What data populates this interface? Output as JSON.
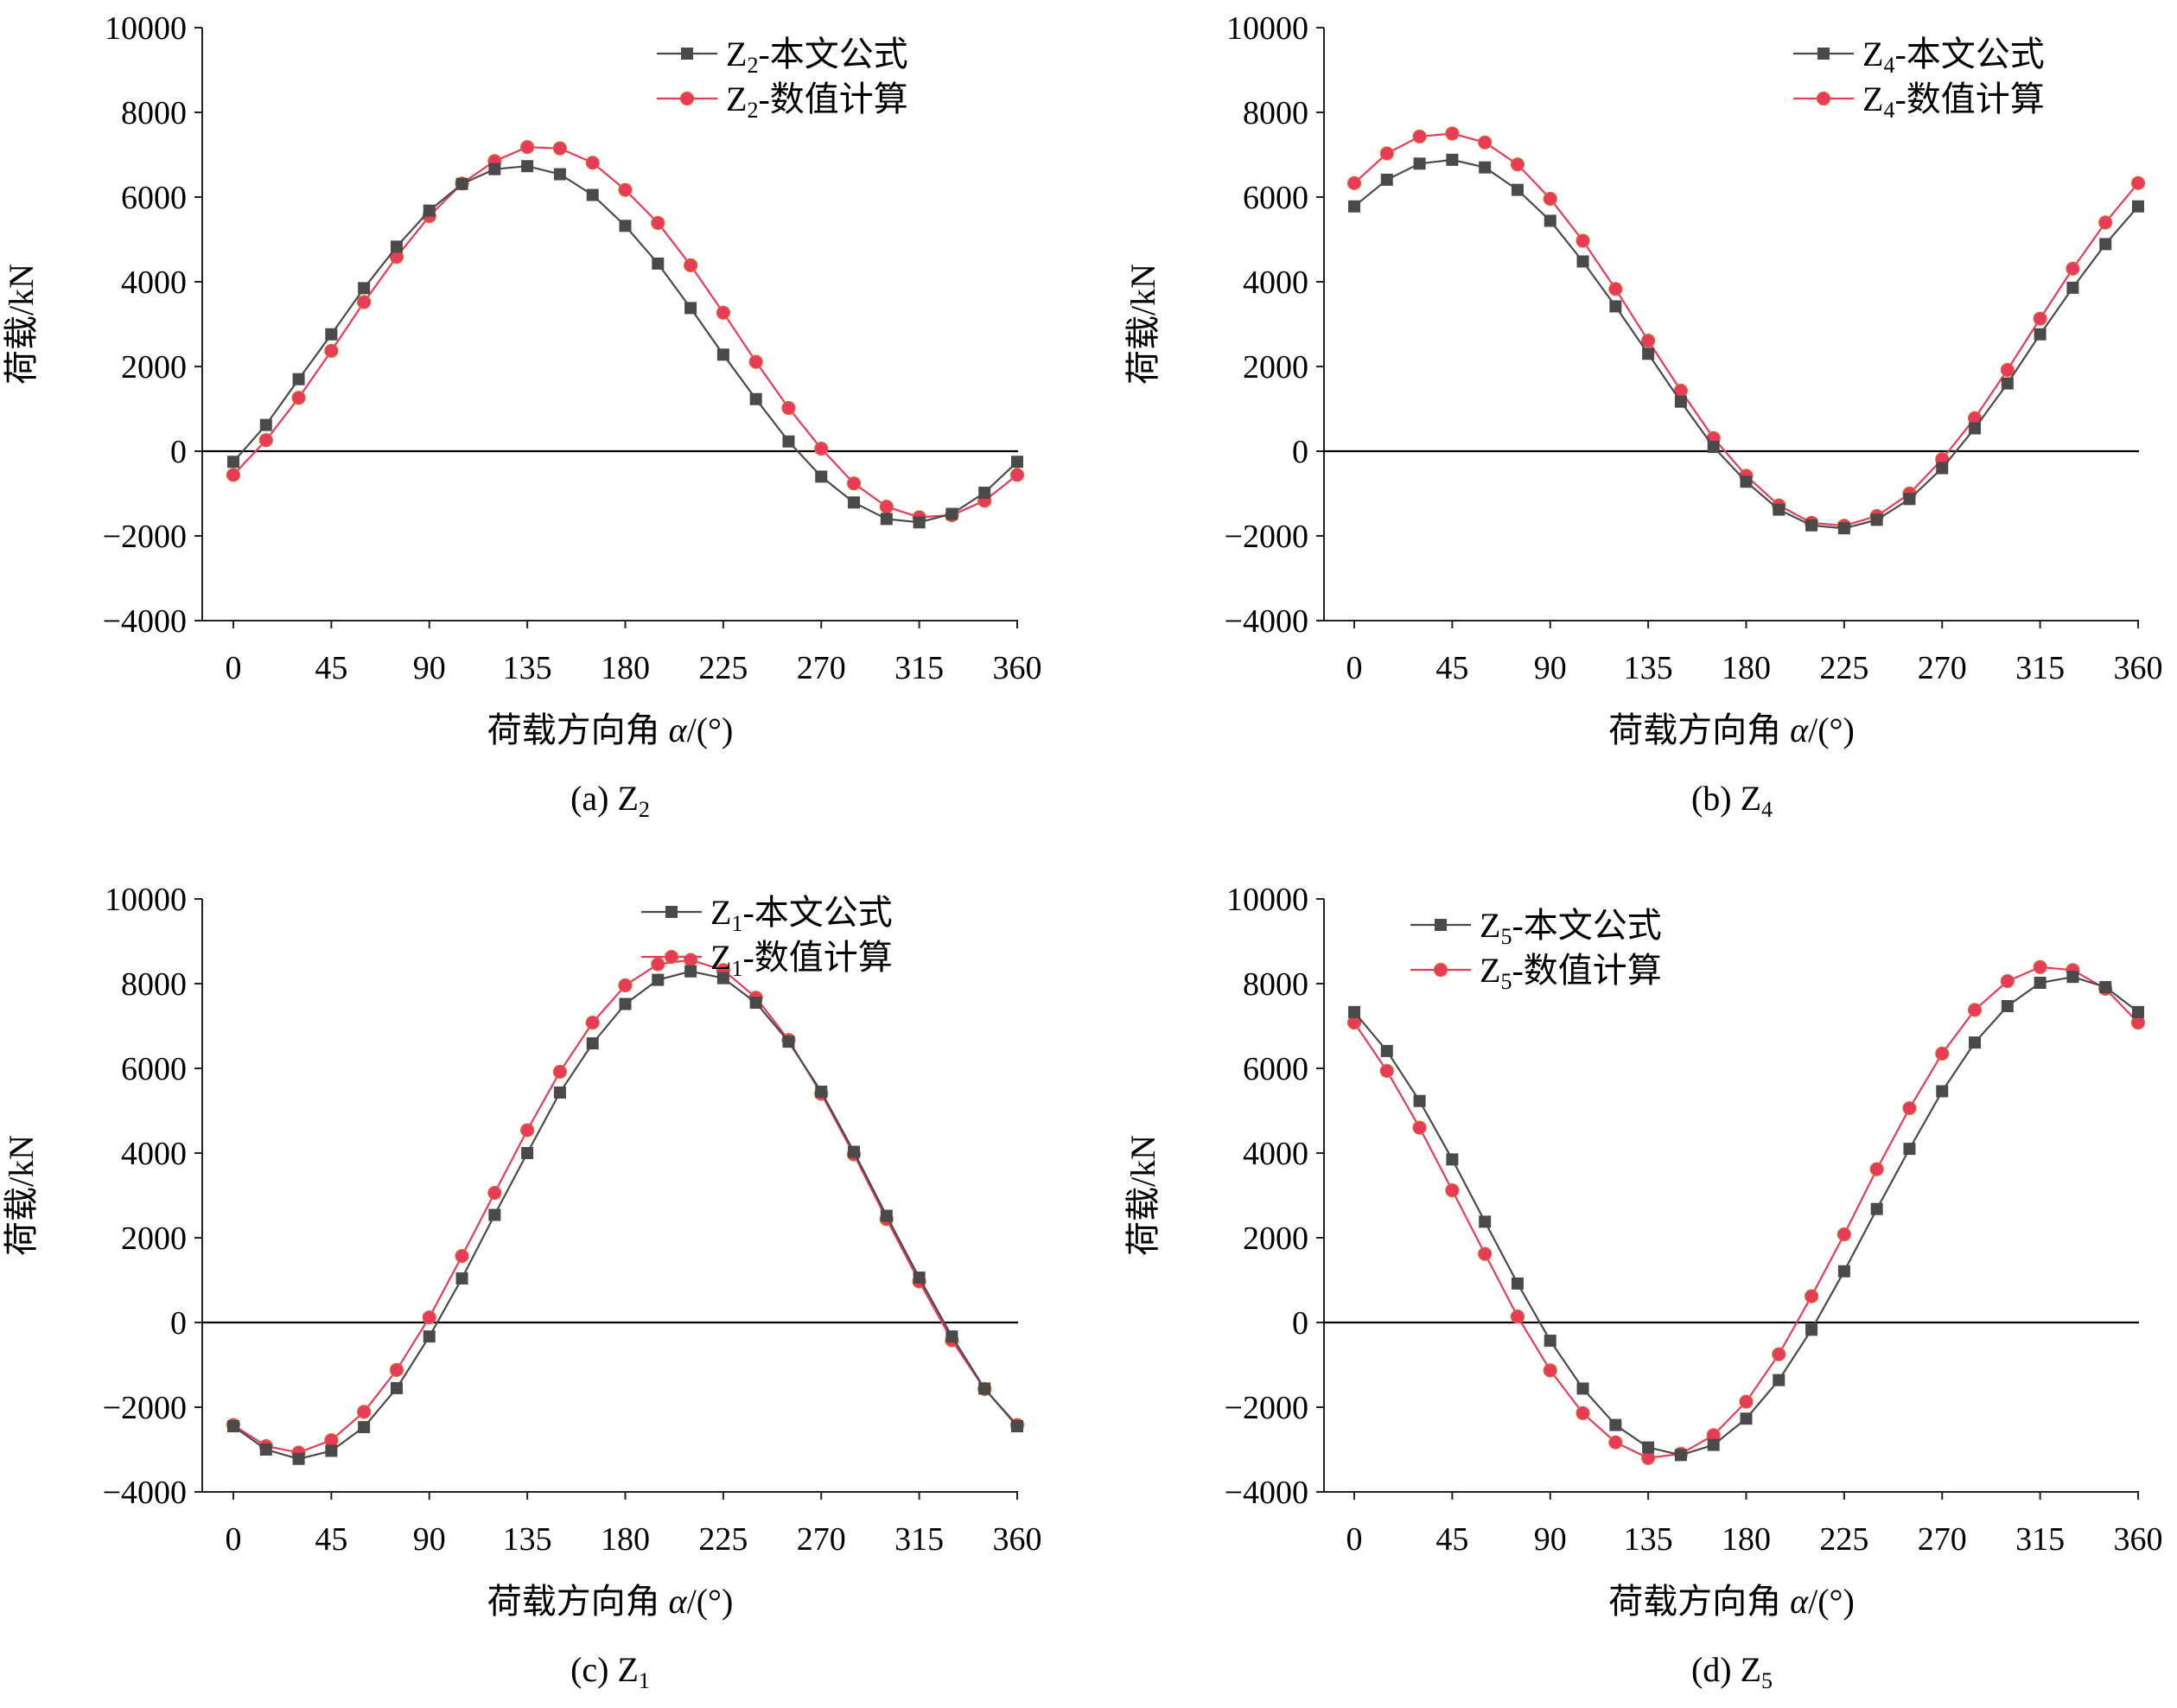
{
  "colors": {
    "formula": "#4a4a4a",
    "numeric": "#e83a5a",
    "zero_line": "#000000",
    "axis": "#222222"
  },
  "chart_data": [
    {
      "type": "line",
      "id": "a",
      "caption": {
        "prefix": "(a) Z",
        "sub": "2"
      },
      "xlabel": {
        "text": "荷载方向角 ",
        "italic": "α",
        "unit": "/(°)"
      },
      "ylabel": "荷载/kN",
      "xlim": [
        0,
        360
      ],
      "ylim": [
        -4000,
        10000
      ],
      "xticks": [
        0,
        45,
        90,
        135,
        180,
        225,
        270,
        315,
        360
      ],
      "yticks": [
        -4000,
        -2000,
        0,
        2000,
        4000,
        6000,
        8000,
        10000
      ],
      "legend_position": "top-right",
      "x": [
        0,
        15,
        30,
        45,
        60,
        75,
        90,
        105,
        120,
        135,
        150,
        165,
        180,
        195,
        210,
        225,
        240,
        255,
        270,
        285,
        300,
        315,
        330,
        345,
        360
      ],
      "series": [
        {
          "name": "Z2-本文公式",
          "label_main": "Z",
          "label_sub": "2",
          "label_rest": "-本文公式",
          "marker": "square",
          "values": [
            -250,
            620,
            1700,
            2760,
            3850,
            4830,
            5680,
            6310,
            6660,
            6730,
            6540,
            6050,
            5320,
            4430,
            3380,
            2280,
            1230,
            230,
            -600,
            -1210,
            -1600,
            -1680,
            -1480,
            -980,
            -250
          ]
        },
        {
          "name": "Z2-数值计算",
          "label_main": "Z",
          "label_sub": "2",
          "label_rest": "-数值计算",
          "marker": "circle",
          "values": [
            -560,
            260,
            1260,
            2370,
            3520,
            4590,
            5550,
            6320,
            6850,
            7180,
            7150,
            6810,
            6170,
            5390,
            4390,
            3270,
            2110,
            1020,
            60,
            -760,
            -1310,
            -1560,
            -1510,
            -1170,
            -560
          ]
        }
      ]
    },
    {
      "type": "line",
      "id": "b",
      "caption": {
        "prefix": "(b) Z",
        "sub": "4"
      },
      "xlabel": {
        "text": "荷载方向角 ",
        "italic": "α",
        "unit": "/(°)"
      },
      "ylabel": "荷载/kN",
      "xlim": [
        0,
        360
      ],
      "ylim": [
        -4000,
        10000
      ],
      "xticks": [
        0,
        45,
        90,
        135,
        180,
        225,
        270,
        315,
        360
      ],
      "yticks": [
        -4000,
        -2000,
        0,
        2000,
        4000,
        6000,
        8000,
        10000
      ],
      "legend_position": "top-right",
      "x": [
        0,
        15,
        30,
        45,
        60,
        75,
        90,
        105,
        120,
        135,
        150,
        165,
        180,
        195,
        210,
        225,
        240,
        255,
        270,
        285,
        300,
        315,
        330,
        345,
        360
      ],
      "series": [
        {
          "name": "Z4-本文公式",
          "label_main": "Z",
          "label_sub": "4",
          "label_rest": "-本文公式",
          "marker": "square",
          "values": [
            5780,
            6410,
            6790,
            6880,
            6700,
            6170,
            5440,
            4480,
            3420,
            2300,
            1170,
            100,
            -720,
            -1380,
            -1750,
            -1820,
            -1620,
            -1130,
            -400,
            540,
            1600,
            2760,
            3860,
            4890,
            5780
          ]
        },
        {
          "name": "Z4-数值计算",
          "label_main": "Z",
          "label_sub": "4",
          "label_rest": "-数值计算",
          "marker": "circle",
          "values": [
            6330,
            7030,
            7430,
            7500,
            7290,
            6770,
            5960,
            4970,
            3830,
            2610,
            1430,
            310,
            -580,
            -1280,
            -1690,
            -1760,
            -1530,
            -1000,
            -190,
            780,
            1920,
            3130,
            4310,
            5400,
            6330
          ]
        }
      ]
    },
    {
      "type": "line",
      "id": "c",
      "caption": {
        "prefix": "(c) Z",
        "sub": "1"
      },
      "xlabel": {
        "text": "荷载方向角 ",
        "italic": "α",
        "unit": "/(°)"
      },
      "ylabel": "荷载/kN",
      "xlim": [
        0,
        360
      ],
      "ylim": [
        -4000,
        10000
      ],
      "xticks": [
        0,
        45,
        90,
        135,
        180,
        225,
        270,
        315,
        360
      ],
      "yticks": [
        -4000,
        -2000,
        0,
        2000,
        4000,
        6000,
        8000,
        10000
      ],
      "legend_position": "top-right",
      "x": [
        0,
        15,
        30,
        45,
        60,
        75,
        90,
        105,
        120,
        135,
        150,
        165,
        180,
        195,
        210,
        225,
        240,
        255,
        270,
        285,
        300,
        315,
        330,
        345,
        360
      ],
      "series": [
        {
          "name": "Z1-本文公式",
          "label_main": "Z",
          "label_sub": "1",
          "label_rest": "-本文公式",
          "marker": "square",
          "values": [
            -2450,
            -3000,
            -3220,
            -3030,
            -2470,
            -1550,
            -330,
            1040,
            2540,
            4000,
            5430,
            6590,
            7520,
            8090,
            8290,
            8130,
            7550,
            6630,
            5450,
            4030,
            2520,
            1060,
            -330,
            -1560,
            -2450
          ]
        },
        {
          "name": "Z1-数值计算",
          "label_main": "Z",
          "label_sub": "1",
          "label_rest": "-数值计算",
          "marker": "circle",
          "values": [
            -2420,
            -2920,
            -3070,
            -2780,
            -2110,
            -1120,
            120,
            1570,
            3060,
            4540,
            5920,
            7080,
            7960,
            8460,
            8560,
            8320,
            7670,
            6670,
            5400,
            3970,
            2440,
            970,
            -420,
            -1570,
            -2420
          ]
        }
      ]
    },
    {
      "type": "line",
      "id": "d",
      "caption": {
        "prefix": "(d) Z",
        "sub": "5"
      },
      "xlabel": {
        "text": "荷载方向角 ",
        "italic": "α",
        "unit": "/(°)"
      },
      "ylabel": "荷载/kN",
      "xlim": [
        0,
        360
      ],
      "ylim": [
        -4000,
        10000
      ],
      "xticks": [
        0,
        45,
        90,
        135,
        180,
        225,
        270,
        315,
        360
      ],
      "yticks": [
        -4000,
        -2000,
        0,
        2000,
        4000,
        6000,
        8000,
        10000
      ],
      "legend_position": "top-left",
      "x": [
        0,
        15,
        30,
        45,
        60,
        75,
        90,
        105,
        120,
        135,
        150,
        165,
        180,
        195,
        210,
        225,
        240,
        255,
        270,
        285,
        300,
        315,
        330,
        345,
        360
      ],
      "series": [
        {
          "name": "Z5-本文公式",
          "label_main": "Z",
          "label_sub": "5",
          "label_rest": "-本文公式",
          "marker": "square",
          "values": [
            7330,
            6410,
            5230,
            3850,
            2380,
            920,
            -430,
            -1560,
            -2420,
            -2950,
            -3130,
            -2890,
            -2270,
            -1360,
            -170,
            1210,
            2680,
            4100,
            5460,
            6610,
            7470,
            8020,
            8160,
            7920,
            7330
          ]
        },
        {
          "name": "Z5-数值计算",
          "label_main": "Z",
          "label_sub": "5",
          "label_rest": "-数值计算",
          "marker": "circle",
          "values": [
            7080,
            5940,
            4600,
            3120,
            1620,
            140,
            -1130,
            -2140,
            -2830,
            -3200,
            -3100,
            -2660,
            -1870,
            -750,
            620,
            2080,
            3620,
            5060,
            6350,
            7380,
            8060,
            8390,
            8320,
            7880,
            7080
          ]
        }
      ]
    }
  ]
}
